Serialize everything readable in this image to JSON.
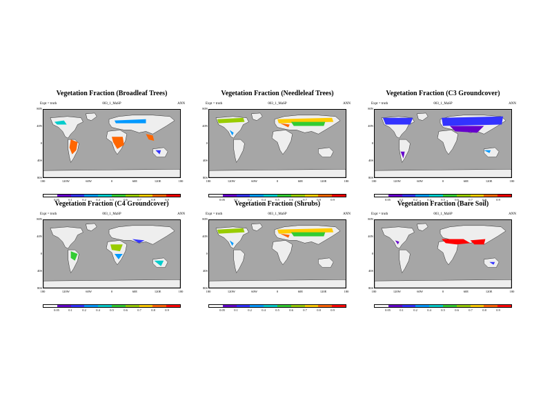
{
  "panels": [
    {
      "title": "Vegetation Fraction (Broadleaf Trees)",
      "subtitle_left": "Expt = truth",
      "subtitle_center": "003_1_MaSP",
      "subtitle_right": "ANN",
      "scale": "warm",
      "colorbar_labels": [
        "0.05",
        "0.1",
        "0.2",
        "0.4",
        "0.5",
        "0.6",
        "0.7",
        "0.8",
        "0.9"
      ],
      "longitude_labels": [
        "180",
        "120W",
        "60W",
        "0",
        "60E",
        "120E",
        "180"
      ],
      "latitude_labels": [
        "80N",
        "40N",
        "0",
        "40S",
        "80S"
      ]
    },
    {
      "title": "Vegetation Fraction (Needleleaf Trees)",
      "subtitle_left": "Expt = truth",
      "subtitle_center": "003_1_MaSP",
      "subtitle_right": "ANN",
      "scale": "green",
      "colorbar_labels": [
        "0.05",
        "0.1",
        "0.2",
        "0.4",
        "0.5",
        "0.6",
        "0.7",
        "0.8",
        "0.9"
      ],
      "longitude_labels": [
        "180",
        "120W",
        "60W",
        "0",
        "60E",
        "120E",
        "180"
      ],
      "latitude_labels": [
        "80N",
        "40N",
        "0",
        "40S",
        "80S"
      ]
    },
    {
      "title": "Vegetation Fraction (C3 Groundcover)",
      "subtitle_left": "Expt = truth",
      "subtitle_center": "003_1_MaSP",
      "subtitle_right": "ANN",
      "scale": "blue",
      "colorbar_labels": [
        "0.05",
        "0.1",
        "0.2",
        "0.4",
        "0.5",
        "0.6",
        "0.7",
        "0.8",
        "0.9"
      ],
      "longitude_labels": [
        "180",
        "120W",
        "60W",
        "0",
        "60E",
        "120E",
        "180"
      ],
      "latitude_labels": [
        "80N",
        "40N",
        "0",
        "40S",
        "80S"
      ]
    },
    {
      "title": "Vegetation Fraction (C4 Groundcover)",
      "subtitle_left": "Expt = truth",
      "subtitle_center": "003_1_MaSP",
      "subtitle_right": "ANN",
      "scale": "mixed",
      "colorbar_labels": [
        "0.05",
        "0.1",
        "0.2",
        "0.4",
        "0.5",
        "0.6",
        "0.7",
        "0.8",
        "0.9"
      ],
      "longitude_labels": [
        "180",
        "120W",
        "60W",
        "0",
        "60E",
        "120E",
        "180"
      ],
      "latitude_labels": [
        "80N",
        "40N",
        "0",
        "40S",
        "80S"
      ]
    },
    {
      "title": "Vegetation Fraction (Shrubs)",
      "subtitle_left": "Expt = truth",
      "subtitle_center": "003_1_MaSP",
      "subtitle_right": "ANN",
      "scale": "green",
      "colorbar_labels": [
        "0.05",
        "0.1",
        "0.2",
        "0.4",
        "0.5",
        "0.6",
        "0.7",
        "0.8",
        "0.9"
      ],
      "longitude_labels": [
        "180",
        "120W",
        "60W",
        "0",
        "60E",
        "120E",
        "180"
      ],
      "latitude_labels": [
        "80N",
        "40N",
        "0",
        "40S",
        "80S"
      ]
    },
    {
      "title": "Vegetation Fraction (Bare Soil)",
      "subtitle_left": "Expt = truth",
      "subtitle_center": "003_1_MaSP",
      "subtitle_right": "ANN",
      "scale": "red",
      "colorbar_labels": [
        "0.05",
        "0.1",
        "0.2",
        "0.4",
        "0.5",
        "0.6",
        "0.7",
        "0.8",
        "0.9"
      ],
      "longitude_labels": [
        "180",
        "120W",
        "60W",
        "0",
        "60E",
        "120E",
        "180"
      ],
      "latitude_labels": [
        "80N",
        "40N",
        "0",
        "40S",
        "80S"
      ]
    }
  ],
  "colors": {
    "ocean": "#a6a6a6",
    "land_zero": "#eeeeee",
    "colorbar": [
      "#ffffff",
      "#6600cc",
      "#3333ff",
      "#0099ff",
      "#00cccc",
      "#33cc33",
      "#99cc00",
      "#ffcc00",
      "#ff6600",
      "#ff0000"
    ]
  }
}
